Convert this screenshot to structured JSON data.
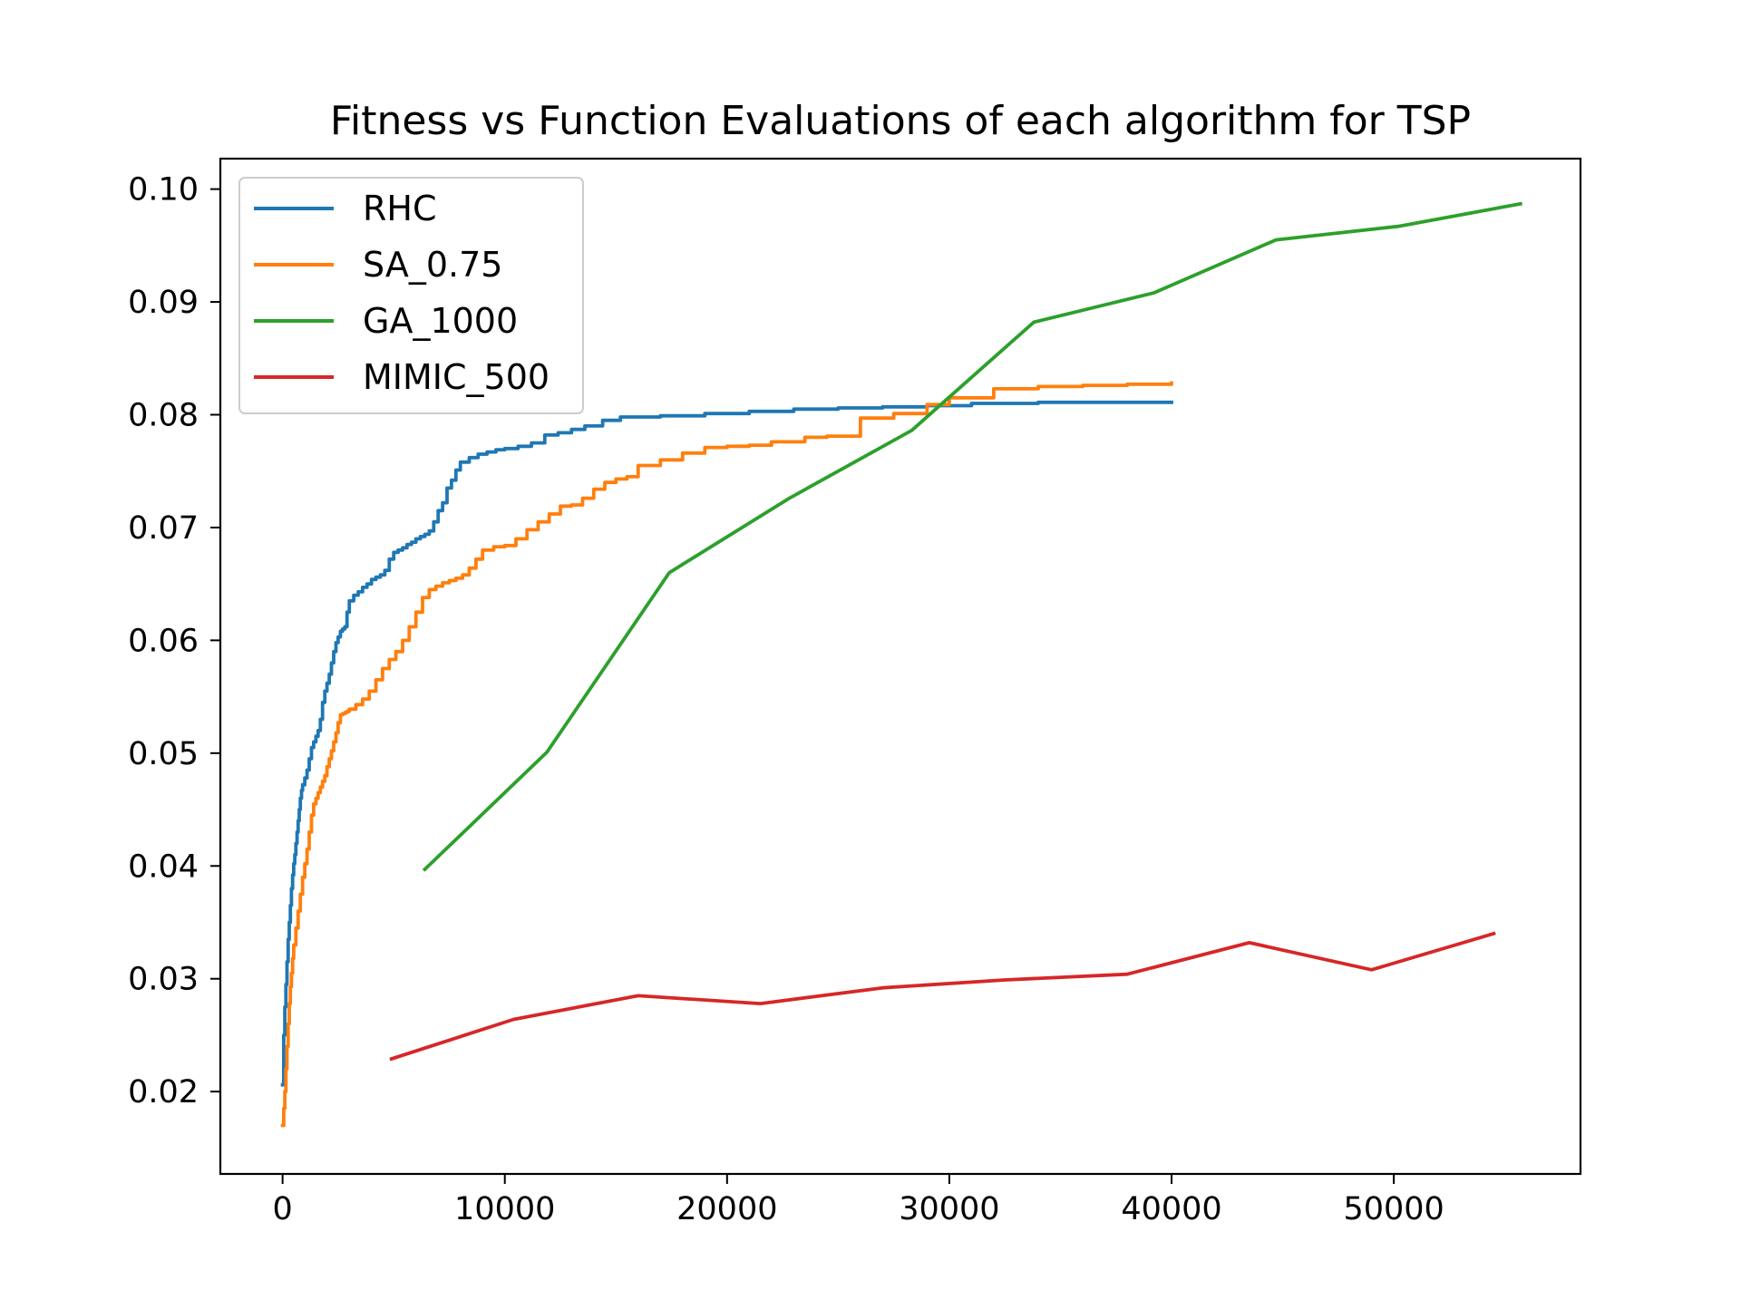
{
  "chart_data": {
    "type": "line",
    "title": "Fitness vs Function Evaluations of each algorithm for TSP",
    "xlabel": "",
    "ylabel": "",
    "xlim": [
      -2800,
      58400
    ],
    "ylim": [
      0.0127,
      0.1027
    ],
    "x_ticks": [
      0,
      10000,
      20000,
      30000,
      40000,
      50000
    ],
    "y_ticks": [
      0.02,
      0.03,
      0.04,
      0.05,
      0.06,
      0.07,
      0.08,
      0.09,
      0.1
    ],
    "x_tick_labels": [
      "0",
      "10000",
      "20000",
      "30000",
      "40000",
      "50000"
    ],
    "y_tick_labels": [
      "0.02",
      "0.03",
      "0.04",
      "0.05",
      "0.06",
      "0.07",
      "0.08",
      "0.09",
      "0.10"
    ],
    "grid": false,
    "legend_position": "top-left",
    "series": [
      {
        "name": "RHC",
        "color": "#1f77b4",
        "step": true,
        "x": [
          0,
          50,
          100,
          150,
          200,
          250,
          300,
          350,
          400,
          450,
          500,
          550,
          600,
          650,
          700,
          750,
          800,
          850,
          900,
          1000,
          1100,
          1200,
          1300,
          1400,
          1500,
          1600,
          1700,
          1800,
          1900,
          2000,
          2100,
          2200,
          2300,
          2400,
          2500,
          2600,
          2700,
          2800,
          2900,
          3000,
          3200,
          3400,
          3600,
          3800,
          4000,
          4200,
          4400,
          4600,
          4800,
          5000,
          5200,
          5400,
          5600,
          5800,
          6000,
          6200,
          6400,
          6600,
          6800,
          7000,
          7200,
          7400,
          7600,
          7800,
          8000,
          8400,
          8800,
          9200,
          9600,
          10000,
          10600,
          11200,
          11800,
          12400,
          13000,
          13600,
          14400,
          15200,
          17000,
          19000,
          21000,
          23000,
          25000,
          27000,
          29000,
          31000,
          34000,
          37000,
          40000
        ],
        "y": [
          0.0206,
          0.025,
          0.0275,
          0.0295,
          0.0315,
          0.0335,
          0.035,
          0.0365,
          0.038,
          0.0392,
          0.0402,
          0.041,
          0.042,
          0.043,
          0.044,
          0.045,
          0.046,
          0.0467,
          0.0472,
          0.0478,
          0.0485,
          0.0495,
          0.0505,
          0.051,
          0.0515,
          0.052,
          0.053,
          0.0545,
          0.0555,
          0.0562,
          0.057,
          0.058,
          0.059,
          0.0598,
          0.0603,
          0.0608,
          0.061,
          0.0612,
          0.0625,
          0.0635,
          0.064,
          0.0643,
          0.0647,
          0.065,
          0.0654,
          0.0656,
          0.0658,
          0.0662,
          0.0672,
          0.0678,
          0.068,
          0.0682,
          0.0685,
          0.0687,
          0.069,
          0.0692,
          0.0694,
          0.0697,
          0.0705,
          0.0715,
          0.0722,
          0.0735,
          0.0742,
          0.0751,
          0.0758,
          0.0762,
          0.0765,
          0.0767,
          0.0769,
          0.077,
          0.0772,
          0.0775,
          0.0782,
          0.0784,
          0.0787,
          0.079,
          0.0795,
          0.0798,
          0.0799,
          0.0801,
          0.0803,
          0.0805,
          0.0806,
          0.0807,
          0.0808,
          0.081,
          0.0811,
          0.0811,
          0.0811
        ]
      },
      {
        "name": "SA_0.75",
        "color": "#ff7f0e",
        "step": true,
        "x": [
          0,
          50,
          100,
          150,
          200,
          250,
          300,
          350,
          400,
          450,
          500,
          600,
          700,
          800,
          900,
          1000,
          1100,
          1200,
          1300,
          1400,
          1500,
          1600,
          1700,
          1800,
          1900,
          2000,
          2100,
          2200,
          2300,
          2400,
          2500,
          2600,
          2700,
          2800,
          2900,
          3000,
          3300,
          3600,
          3900,
          4200,
          4500,
          4800,
          5100,
          5400,
          5700,
          6000,
          6300,
          6600,
          6900,
          7200,
          7500,
          7800,
          8100,
          8400,
          8700,
          9000,
          9500,
          10000,
          10500,
          11000,
          11500,
          12000,
          12500,
          13000,
          13500,
          14000,
          14500,
          15000,
          15500,
          16000,
          17000,
          18000,
          19000,
          20000,
          21000,
          22000,
          23500,
          24500,
          26000,
          27500,
          29000,
          30000,
          32000,
          34000,
          36000,
          38000,
          40000
        ],
        "y": [
          0.017,
          0.0185,
          0.02,
          0.022,
          0.024,
          0.026,
          0.0278,
          0.0293,
          0.0305,
          0.0318,
          0.033,
          0.0345,
          0.036,
          0.0375,
          0.039,
          0.0402,
          0.0415,
          0.043,
          0.0445,
          0.0455,
          0.046,
          0.0465,
          0.047,
          0.0475,
          0.048,
          0.0488,
          0.0495,
          0.0502,
          0.051,
          0.0518,
          0.0527,
          0.0534,
          0.0535,
          0.0536,
          0.0537,
          0.0539,
          0.0543,
          0.0548,
          0.0555,
          0.0565,
          0.0575,
          0.0583,
          0.059,
          0.06,
          0.0612,
          0.0625,
          0.0638,
          0.0645,
          0.0648,
          0.0651,
          0.0653,
          0.0655,
          0.0658,
          0.0664,
          0.0672,
          0.068,
          0.0683,
          0.0684,
          0.069,
          0.0698,
          0.0705,
          0.0712,
          0.0719,
          0.072,
          0.0726,
          0.0734,
          0.074,
          0.0743,
          0.0745,
          0.0755,
          0.076,
          0.0766,
          0.0771,
          0.0772,
          0.0773,
          0.0776,
          0.078,
          0.0781,
          0.0797,
          0.0801,
          0.0809,
          0.0815,
          0.0823,
          0.0825,
          0.0826,
          0.0827,
          0.0828
        ]
      },
      {
        "name": "GA_1000",
        "color": "#2ca02c",
        "step": false,
        "x": [
          6400,
          11900,
          17400,
          22800,
          28300,
          33800,
          39200,
          44700,
          50200,
          55700
        ],
        "y": [
          0.0397,
          0.0501,
          0.066,
          0.0726,
          0.0786,
          0.0882,
          0.0908,
          0.0955,
          0.0967,
          0.0987
        ]
      },
      {
        "name": "MIMIC_500",
        "color": "#d62728",
        "step": false,
        "x": [
          4900,
          10400,
          16000,
          21500,
          27000,
          32500,
          38000,
          43500,
          49000,
          54500
        ],
        "y": [
          0.0229,
          0.0264,
          0.0285,
          0.0278,
          0.0292,
          0.0299,
          0.0304,
          0.0332,
          0.0308,
          0.034
        ]
      }
    ]
  }
}
